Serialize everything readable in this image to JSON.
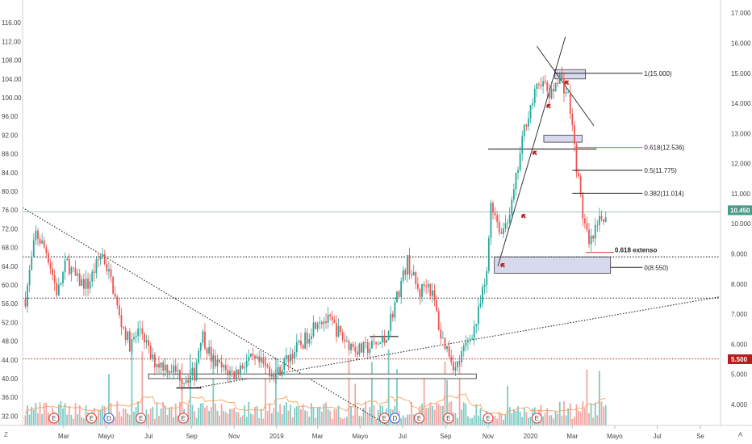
{
  "chart_data": {
    "type": "candlestick",
    "title": "",
    "left_axis": {
      "min": 30,
      "max": 120,
      "ticks": [
        "116.00",
        "112.00",
        "108.00",
        "104.00",
        "100.00",
        "96.00",
        "92.00",
        "88.00",
        "84.00",
        "80.00",
        "76.00",
        "72.00",
        "68.00",
        "64.00",
        "60.00",
        "56.00",
        "52.00",
        "48.00",
        "44.00",
        "40.00",
        "36.00",
        "32.00"
      ]
    },
    "right_axis": {
      "min": 3.3,
      "max": 17.3,
      "ticks": [
        "17.000",
        "16.000",
        "15.000",
        "14.000",
        "13.000",
        "12.000",
        "11.000",
        "10.000",
        "9.000",
        "8.000",
        "7.000",
        "6.000",
        "5.000",
        "4.000"
      ]
    },
    "x_axis": {
      "start": "2018-01-01",
      "end": "2020-09-30",
      "ticks": [
        {
          "label": "Mar",
          "date": "2018-03-01"
        },
        {
          "label": "Mayo",
          "date": "2018-05-01"
        },
        {
          "label": "Jul",
          "date": "2018-07-01"
        },
        {
          "label": "Sep",
          "date": "2018-09-01"
        },
        {
          "label": "Nov",
          "date": "2018-11-01"
        },
        {
          "label": "2019",
          "date": "2019-01-01"
        },
        {
          "label": "Mar",
          "date": "2019-03-01"
        },
        {
          "label": "Mayo",
          "date": "2019-05-01"
        },
        {
          "label": "Jul",
          "date": "2019-07-01"
        },
        {
          "label": "Sep",
          "date": "2019-09-01"
        },
        {
          "label": "Nov",
          "date": "2019-11-01"
        },
        {
          "label": "2020",
          "date": "2020-01-01"
        },
        {
          "label": "Mar",
          "date": "2020-03-01"
        },
        {
          "label": "Mayo",
          "date": "2020-05-01"
        },
        {
          "label": "Jul",
          "date": "2020-07-01"
        },
        {
          "label": "Se",
          "date": "2020-09-01"
        }
      ]
    },
    "price_path": [
      [
        "2018-01-05",
        57
      ],
      [
        "2018-01-20",
        71
      ],
      [
        "2018-02-05",
        67
      ],
      [
        "2018-02-20",
        58
      ],
      [
        "2018-03-05",
        65
      ],
      [
        "2018-03-20",
        61
      ],
      [
        "2018-04-05",
        60
      ],
      [
        "2018-04-25",
        67
      ],
      [
        "2018-05-10",
        60
      ],
      [
        "2018-05-20",
        53
      ],
      [
        "2018-06-05",
        47
      ],
      [
        "2018-06-20",
        51
      ],
      [
        "2018-07-05",
        44
      ],
      [
        "2018-07-20",
        43
      ],
      [
        "2018-08-05",
        42
      ],
      [
        "2018-08-20",
        40
      ],
      [
        "2018-09-05",
        41
      ],
      [
        "2018-09-15",
        50
      ],
      [
        "2018-09-30",
        44
      ],
      [
        "2018-10-15",
        42
      ],
      [
        "2018-11-01",
        41
      ],
      [
        "2018-11-20",
        44
      ],
      [
        "2018-12-10",
        43
      ],
      [
        "2019-01-01",
        41
      ],
      [
        "2019-01-20",
        45
      ],
      [
        "2019-02-10",
        48
      ],
      [
        "2019-03-01",
        53
      ],
      [
        "2019-03-20",
        52
      ],
      [
        "2019-04-10",
        48
      ],
      [
        "2019-05-01",
        46
      ],
      [
        "2019-05-20",
        47
      ],
      [
        "2019-06-05",
        48
      ],
      [
        "2019-06-20",
        56
      ],
      [
        "2019-07-08",
        65
      ],
      [
        "2019-07-25",
        58
      ],
      [
        "2019-08-05",
        61
      ],
      [
        "2019-08-15",
        57
      ],
      [
        "2019-08-25",
        49
      ],
      [
        "2019-09-05",
        46
      ],
      [
        "2019-09-15",
        42
      ],
      [
        "2019-09-30",
        47
      ],
      [
        "2019-10-15",
        52
      ],
      [
        "2019-10-30",
        62
      ],
      [
        "2019-11-05",
        78
      ],
      [
        "2019-11-20",
        71
      ],
      [
        "2019-12-05",
        77
      ],
      [
        "2019-12-25",
        95
      ],
      [
        "2020-01-15",
        104
      ],
      [
        "2020-01-30",
        100
      ],
      [
        "2020-02-10",
        105
      ],
      [
        "2020-02-25",
        100
      ],
      [
        "2020-03-05",
        88
      ],
      [
        "2020-03-15",
        76
      ],
      [
        "2020-03-25",
        68
      ],
      [
        "2020-04-05",
        72
      ],
      [
        "2020-04-15",
        75
      ],
      [
        "2020-04-20",
        73
      ]
    ],
    "volume_profile": "bars along the bottom, teal on up days and salmon on down days",
    "annotations": {
      "fib_levels": [
        {
          "label": "1(15.000)",
          "value": 15.0
        },
        {
          "label": "0.618(12.536)",
          "value": 12.536
        },
        {
          "label": "0.5(11.775)",
          "value": 11.775
        },
        {
          "label": "0.382(11.014)",
          "value": 11.014
        },
        {
          "label": "0(8.550)",
          "value": 8.55
        }
      ],
      "extension_label": "0.618 extenso",
      "last_price": "10.450",
      "level_badge": "5.500",
      "event_markers": [
        "E",
        "E",
        "D",
        "E",
        "E",
        "E",
        "D",
        "E",
        "E",
        "E",
        "E"
      ]
    },
    "corner_labels": {
      "bottom_left": "Z",
      "bottom_right": "A"
    },
    "colors": {
      "up": "#26a69a",
      "down": "#ef5350",
      "vol_up": "#7fcbc4",
      "vol_down": "#f4a6a3",
      "last_price_bg": "#4a9a8a",
      "badge_bg": "#b71c1c",
      "fib_purple": "#b64dcf",
      "zone_fill": "#c9cde8",
      "ma_line": "#f6a45f"
    },
    "grid": false,
    "legend": "none"
  }
}
